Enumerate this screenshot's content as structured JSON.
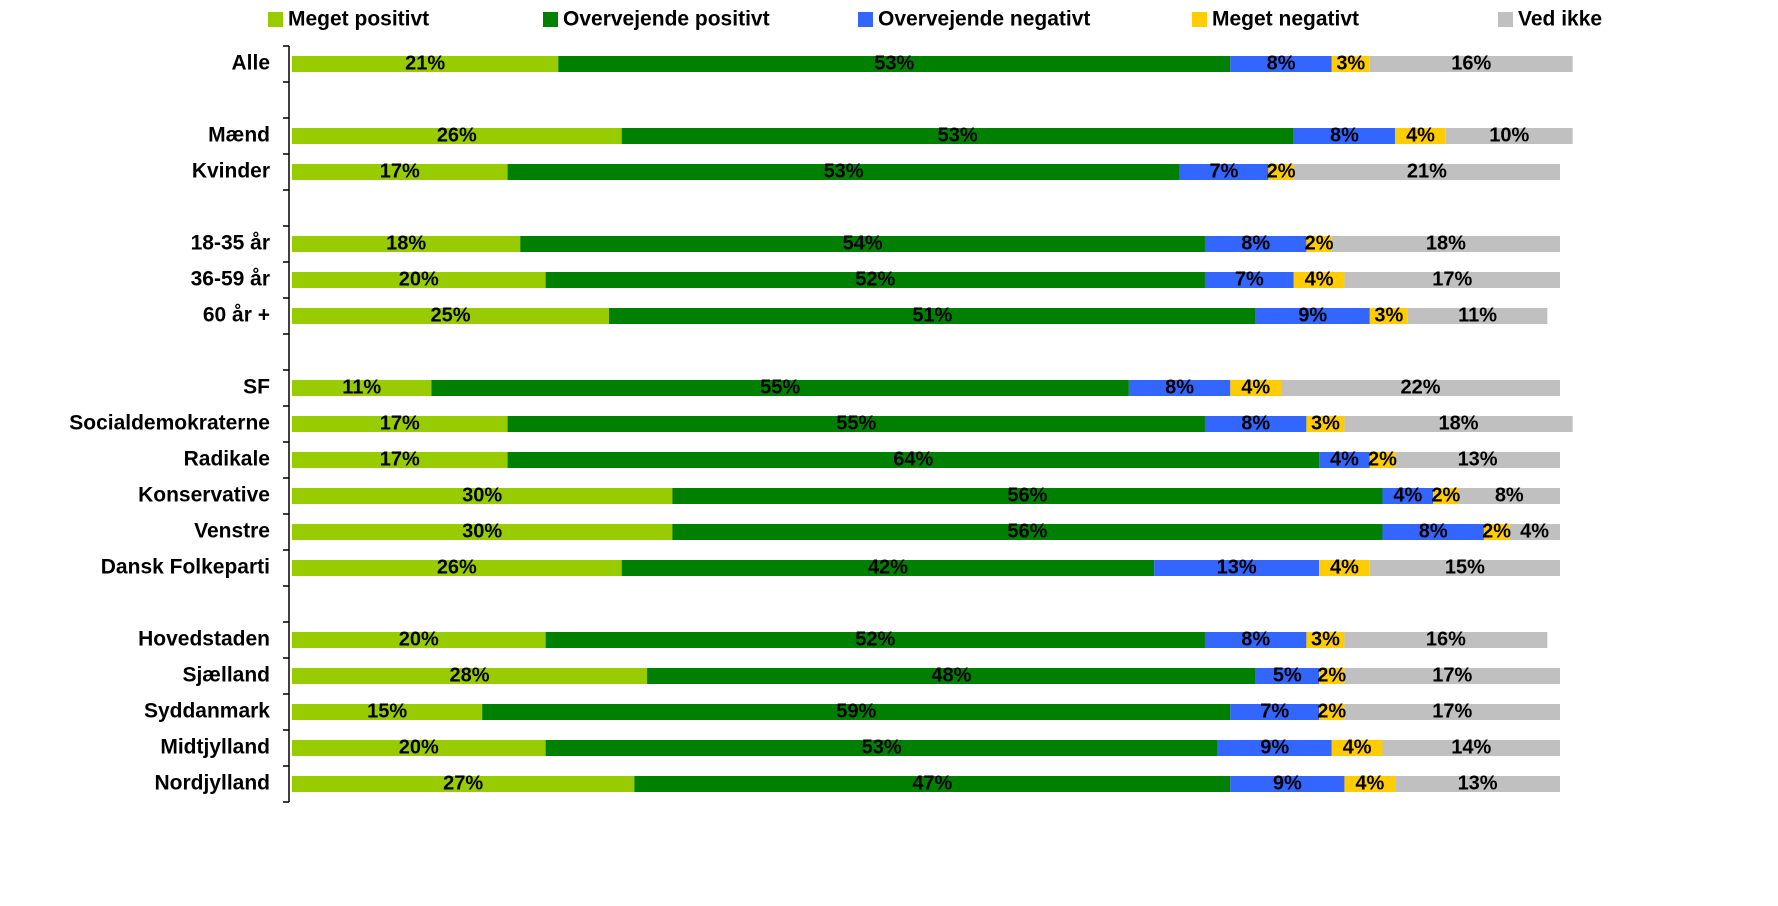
{
  "chart_data": {
    "type": "stacked-bar-horizontal",
    "categories": [
      "Alle",
      null,
      "Mænd",
      "Kvinder",
      null,
      "18-35 år",
      "36-59 år",
      "60 år +",
      null,
      "SF",
      "Socialdemokraterne",
      "Radikale",
      "Konservative",
      "Venstre",
      "Dansk Folkeparti",
      null,
      "Hovedstaden",
      "Sjælland",
      "Syddanmark",
      "Midtjylland",
      "Nordjylland"
    ],
    "series": [
      {
        "name": "Meget positivt",
        "color": "#99cc00",
        "values": [
          21,
          null,
          26,
          17,
          null,
          18,
          20,
          25,
          null,
          11,
          17,
          17,
          30,
          30,
          26,
          null,
          20,
          28,
          15,
          20,
          27
        ],
        "value_labels": [
          "21%",
          null,
          "26%",
          "17%",
          null,
          "18%",
          "20%",
          "25%",
          null,
          "11%",
          "17%",
          "17%",
          "30%",
          "30%",
          "26%",
          null,
          "20%",
          "28%",
          "15%",
          "20%",
          "27%"
        ]
      },
      {
        "name": "Overvejende positivt",
        "color": "#008000",
        "values": [
          53,
          null,
          53,
          53,
          null,
          54,
          52,
          51,
          null,
          55,
          55,
          64,
          56,
          56,
          42,
          null,
          52,
          48,
          59,
          53,
          47
        ],
        "value_labels": [
          "53%",
          null,
          "53%",
          "53%",
          null,
          "54%",
          "52%",
          "51%",
          null,
          "55%",
          "55%",
          "64%",
          "56%",
          "56%",
          "42%",
          null,
          "52%",
          "48%",
          "59%",
          "53%",
          "47%"
        ]
      },
      {
        "name": "Overvejende negativt",
        "color": "#3366ff",
        "values": [
          8,
          null,
          8,
          7,
          null,
          8,
          7,
          9,
          null,
          8,
          8,
          4,
          4,
          8,
          13,
          null,
          8,
          5,
          7,
          9,
          9
        ],
        "value_labels": [
          "8%",
          null,
          "8%",
          "7%",
          null,
          "8%",
          "7%",
          "9%",
          null,
          "8%",
          "8%",
          "4%",
          "4%",
          "8%",
          "13%",
          null,
          "8%",
          "5%",
          "7%",
          "9%",
          "9%"
        ]
      },
      {
        "name": "Meget negativt",
        "color": "#ffcc00",
        "values": [
          3,
          null,
          4,
          2,
          null,
          2,
          4,
          3,
          null,
          4,
          3,
          2,
          2,
          2,
          4,
          null,
          3,
          2,
          2,
          4,
          4
        ],
        "value_labels": [
          "3%",
          null,
          "4%",
          "2%",
          null,
          "2%",
          "4%",
          "3%",
          null,
          "4%",
          "3%",
          "2%",
          "2%",
          "2%",
          "4%",
          null,
          "3%",
          "2%",
          "2%",
          "4%",
          "4%"
        ]
      },
      {
        "name": "Ved ikke",
        "color": "#c0c0c0",
        "values": [
          16,
          null,
          10,
          21,
          null,
          18,
          17,
          11,
          null,
          22,
          18,
          13,
          8,
          4,
          15,
          null,
          16,
          17,
          17,
          14,
          13
        ],
        "value_labels": [
          "16%",
          null,
          "10%",
          "21%",
          null,
          "18%",
          "17%",
          "11%",
          null,
          "22%",
          "18%",
          "13%",
          "8%",
          "4%",
          "15%",
          null,
          "16%",
          "17%",
          "17%",
          "14%",
          "13%"
        ]
      }
    ],
    "xlim": [
      0,
      100
    ],
    "legend": "top"
  }
}
